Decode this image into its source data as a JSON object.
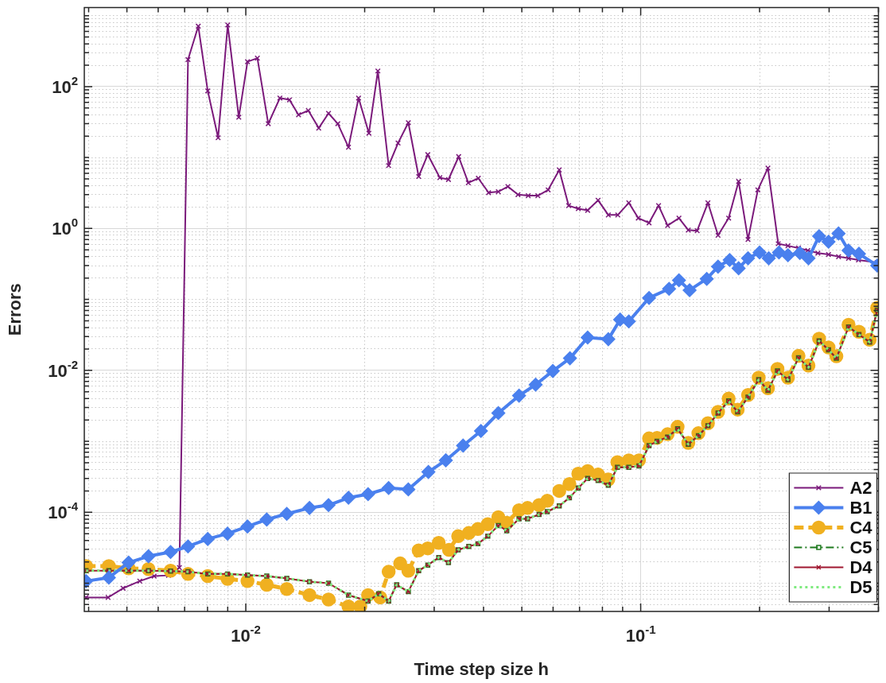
{
  "chart_data": {
    "type": "line",
    "xlabel": "Time step size h",
    "ylabel": "Errors",
    "log": "xy",
    "grid": true,
    "legend": "bottom right",
    "xlim": [
      0.0039,
      0.4
    ],
    "ylim": [
      4e-06,
      1300
    ],
    "xticks": [
      {
        "value": 0.004,
        "label": null
      },
      {
        "value": 0.005,
        "label": null
      },
      {
        "value": 0.006,
        "label": null
      },
      {
        "value": 0.007,
        "label": null
      },
      {
        "value": 0.008,
        "label": null
      },
      {
        "value": 0.009,
        "label": null
      },
      {
        "value": 0.01,
        "label": "10$^{-2}$"
      },
      {
        "value": 0.02,
        "label": null
      },
      {
        "value": 0.03,
        "label": null
      },
      {
        "value": 0.04,
        "label": null
      },
      {
        "value": 0.05,
        "label": null
      },
      {
        "value": 0.06,
        "label": null
      },
      {
        "value": 0.07,
        "label": null
      },
      {
        "value": 0.08,
        "label": null
      },
      {
        "value": 0.09,
        "label": null
      },
      {
        "value": 0.1,
        "label": "10$^{-1}$"
      },
      {
        "value": 0.2,
        "label": null
      },
      {
        "value": 0.3,
        "label": null
      },
      {
        "value": 0.4,
        "label": null
      }
    ],
    "yticks": [
      {
        "value": 5e-06,
        "label": null
      },
      {
        "value": 6e-06,
        "label": null
      },
      {
        "value": 7e-06,
        "label": null
      },
      {
        "value": 8e-06,
        "label": null
      },
      {
        "value": 9e-06,
        "label": null
      },
      {
        "value": 1e-05,
        "label": null
      },
      {
        "value": 2e-05,
        "label": null
      },
      {
        "value": 3e-05,
        "label": null
      },
      {
        "value": 4e-05,
        "label": null
      },
      {
        "value": 5e-05,
        "label": null
      },
      {
        "value": 6e-05,
        "label": null
      },
      {
        "value": 7e-05,
        "label": null
      },
      {
        "value": 8e-05,
        "label": null
      },
      {
        "value": 9e-05,
        "label": null
      },
      {
        "value": 0.0001,
        "label": "10$^{-4}$"
      },
      {
        "value": 0.0002,
        "label": null
      },
      {
        "value": 0.0003,
        "label": null
      },
      {
        "value": 0.0004,
        "label": null
      },
      {
        "value": 0.0005,
        "label": null
      },
      {
        "value": 0.0006,
        "label": null
      },
      {
        "value": 0.0007,
        "label": null
      },
      {
        "value": 0.0008,
        "label": null
      },
      {
        "value": 0.0009,
        "label": null
      },
      {
        "value": 0.001,
        "label": null
      },
      {
        "value": 0.002,
        "label": null
      },
      {
        "value": 0.003,
        "label": null
      },
      {
        "value": 0.004,
        "label": null
      },
      {
        "value": 0.005,
        "label": null
      },
      {
        "value": 0.006,
        "label": null
      },
      {
        "value": 0.007,
        "label": null
      },
      {
        "value": 0.008,
        "label": null
      },
      {
        "value": 0.009,
        "label": null
      },
      {
        "value": 0.01,
        "label": "10$^{-2}$"
      },
      {
        "value": 0.02,
        "label": null
      },
      {
        "value": 0.03,
        "label": null
      },
      {
        "value": 0.04,
        "label": null
      },
      {
        "value": 0.05,
        "label": null
      },
      {
        "value": 0.06,
        "label": null
      },
      {
        "value": 0.07,
        "label": null
      },
      {
        "value": 0.08,
        "label": null
      },
      {
        "value": 0.09,
        "label": null
      },
      {
        "value": 0.1,
        "label": null
      },
      {
        "value": 0.2,
        "label": null
      },
      {
        "value": 0.3,
        "label": null
      },
      {
        "value": 0.4,
        "label": null
      },
      {
        "value": 0.5,
        "label": null
      },
      {
        "value": 0.6,
        "label": null
      },
      {
        "value": 0.7,
        "label": null
      },
      {
        "value": 0.8,
        "label": null
      },
      {
        "value": 0.9,
        "label": null
      },
      {
        "value": 1,
        "label": "10$^{0}$"
      },
      {
        "value": 2,
        "label": null
      },
      {
        "value": 3,
        "label": null
      },
      {
        "value": 4,
        "label": null
      },
      {
        "value": 5,
        "label": null
      },
      {
        "value": 6,
        "label": null
      },
      {
        "value": 7,
        "label": null
      },
      {
        "value": 8,
        "label": null
      },
      {
        "value": 9,
        "label": null
      },
      {
        "value": 10,
        "label": null
      },
      {
        "value": 20,
        "label": null
      },
      {
        "value": 30,
        "label": null
      },
      {
        "value": 40,
        "label": null
      },
      {
        "value": 50,
        "label": null
      },
      {
        "value": 60,
        "label": null
      },
      {
        "value": 70,
        "label": null
      },
      {
        "value": 80,
        "label": null
      },
      {
        "value": 90,
        "label": null
      },
      {
        "value": 100,
        "label": "10$^{2}$"
      },
      {
        "value": 200,
        "label": null
      },
      {
        "value": 300,
        "label": null
      },
      {
        "value": 400,
        "label": null
      },
      {
        "value": 500,
        "label": null
      },
      {
        "value": 600,
        "label": null
      },
      {
        "value": 700,
        "label": null
      },
      {
        "value": 800,
        "label": null
      },
      {
        "value": 900,
        "label": null
      },
      {
        "value": 1000,
        "label": null
      }
    ],
    "series": [
      {
        "name": "A2",
        "color": "#7b1a7b",
        "marker": "cross",
        "line_style": "solid",
        "x": [
          0.00394,
          0.00448,
          0.00489,
          0.00539,
          0.00586,
          0.00637,
          0.00679,
          0.00714,
          0.00758,
          0.00801,
          0.00851,
          0.009,
          0.0096,
          0.0101,
          0.0107,
          0.0114,
          0.0122,
          0.0129,
          0.0136,
          0.0144,
          0.0153,
          0.0162,
          0.0171,
          0.0182,
          0.0193,
          0.0205,
          0.0216,
          0.023,
          0.0243,
          0.0258,
          0.0274,
          0.0289,
          0.031,
          0.0326,
          0.0346,
          0.0366,
          0.0388,
          0.0412,
          0.0436,
          0.0461,
          0.0489,
          0.0519,
          0.0549,
          0.0583,
          0.0622,
          0.0657,
          0.0695,
          0.0734,
          0.078,
          0.0828,
          0.0875,
          0.0933,
          0.0986,
          0.105,
          0.111,
          0.117,
          0.125,
          0.132,
          0.139,
          0.148,
          0.157,
          0.167,
          0.177,
          0.187,
          0.198,
          0.21,
          0.223,
          0.236,
          0.251,
          0.265,
          0.281,
          0.299,
          0.317,
          0.336,
          0.356,
          0.397
        ],
        "values": [
          6.3e-06,
          6.3e-06,
          8.5e-06,
          1.07e-05,
          1.26e-05,
          1.29e-05,
          1.66e-05,
          240,
          710,
          87,
          19,
          740,
          37,
          224,
          252,
          30,
          69,
          65,
          40,
          46,
          26,
          42,
          30,
          14,
          69,
          22,
          166,
          7.7,
          16,
          31,
          5.4,
          11,
          5.2,
          4.9,
          10.3,
          4.4,
          5.1,
          3.2,
          3.3,
          3.9,
          3.0,
          2.9,
          2.9,
          3.5,
          6.7,
          2.1,
          1.9,
          1.8,
          2.5,
          1.55,
          1.55,
          2.3,
          1.4,
          1.2,
          2.1,
          1.1,
          1.4,
          0.95,
          0.93,
          2.3,
          0.8,
          1.4,
          4.6,
          0.7,
          3.5,
          7.1,
          0.61,
          0.57,
          0.53,
          0.49,
          0.45,
          0.43,
          0.4,
          0.38,
          0.36,
          0.33
        ]
      },
      {
        "name": "B1",
        "color": "#4a80ee",
        "marker": "diamond",
        "line_style": "solid",
        "x": [
          0.00394,
          0.0045,
          0.00505,
          0.00567,
          0.00645,
          0.00714,
          0.00801,
          0.00899,
          0.0101,
          0.0113,
          0.0127,
          0.0145,
          0.0162,
          0.0182,
          0.0204,
          0.023,
          0.0258,
          0.029,
          0.0321,
          0.0355,
          0.0394,
          0.0436,
          0.0492,
          0.0542,
          0.0599,
          0.0662,
          0.0734,
          0.0828,
          0.0887,
          0.0933,
          0.105,
          0.118,
          0.125,
          0.133,
          0.147,
          0.157,
          0.168,
          0.177,
          0.187,
          0.2,
          0.211,
          0.224,
          0.236,
          0.253,
          0.266,
          0.283,
          0.299,
          0.317,
          0.336,
          0.357,
          0.397
        ],
        "values": [
          1.07e-05,
          1.2e-05,
          1.95e-05,
          2.4e-05,
          2.75e-05,
          3.3e-05,
          4.2e-05,
          5e-05,
          6.3e-05,
          7.9e-05,
          9.5e-05,
          0.000115,
          0.000126,
          0.00016,
          0.00018,
          0.00022,
          0.00021,
          0.00037,
          0.00054,
          0.00087,
          0.0014,
          0.0025,
          0.0044,
          0.0063,
          0.0098,
          0.0148,
          0.029,
          0.0275,
          0.052,
          0.049,
          0.105,
          0.141,
          0.186,
          0.135,
          0.195,
          0.29,
          0.36,
          0.275,
          0.38,
          0.46,
          0.38,
          0.46,
          0.42,
          0.45,
          0.38,
          0.78,
          0.65,
          0.85,
          0.49,
          0.44,
          0.3
        ]
      },
      {
        "name": "C4",
        "color": "#f0b020",
        "marker": "circle",
        "line_style": "dashed",
        "x": [
          0.00394,
          0.0045,
          0.00505,
          0.00567,
          0.00645,
          0.00714,
          0.00801,
          0.00899,
          0.0101,
          0.0113,
          0.0127,
          0.0145,
          0.0162,
          0.0182,
          0.0195,
          0.0204,
          0.0219,
          0.023,
          0.0246,
          0.0258,
          0.0274,
          0.0289,
          0.0308,
          0.0327,
          0.0345,
          0.0367,
          0.0387,
          0.041,
          0.0436,
          0.0458,
          0.0492,
          0.0517,
          0.0553,
          0.058,
          0.0622,
          0.066,
          0.0695,
          0.0734,
          0.078,
          0.0828,
          0.0873,
          0.0933,
          0.099,
          0.105,
          0.11,
          0.117,
          0.124,
          0.132,
          0.14,
          0.148,
          0.157,
          0.167,
          0.176,
          0.187,
          0.199,
          0.21,
          0.222,
          0.236,
          0.251,
          0.266,
          0.283,
          0.299,
          0.313,
          0.336,
          0.357,
          0.38,
          0.397
        ],
        "values": [
          1.74e-05,
          1.74e-05,
          1.62e-05,
          1.58e-05,
          1.5e-05,
          1.35e-05,
          1.26e-05,
          1.15e-05,
          1.07e-05,
          9.5e-06,
          8.3e-06,
          6.8e-06,
          5.9e-06,
          4.7e-06,
          4.7e-06,
          6.8e-06,
          6.3e-06,
          1.45e-05,
          1.9e-05,
          1.5e-05,
          2.9e-05,
          3.1e-05,
          3.7e-05,
          2.95e-05,
          4.6e-05,
          5.1e-05,
          5.8e-05,
          6.8e-05,
          8.5e-05,
          7.1e-05,
          0.000107,
          0.000115,
          0.000126,
          0.000145,
          0.0002,
          0.00025,
          0.00035,
          0.00038,
          0.00034,
          0.00029,
          0.00051,
          0.00054,
          0.00054,
          0.0011,
          0.00112,
          0.00126,
          0.0016,
          0.00095,
          0.0013,
          0.0018,
          0.0026,
          0.004,
          0.0028,
          0.0045,
          0.0079,
          0.0056,
          0.0105,
          0.0079,
          0.016,
          0.0117,
          0.028,
          0.021,
          0.0158,
          0.044,
          0.035,
          0.027,
          0.076
        ]
      },
      {
        "name": "C5",
        "color": "#1e7a1e",
        "marker": "square",
        "line_style": "dashdot",
        "x": [
          0.00394,
          0.0045,
          0.00505,
          0.00567,
          0.00645,
          0.00714,
          0.00801,
          0.00899,
          0.0101,
          0.0113,
          0.0127,
          0.0145,
          0.0162,
          0.0182,
          0.0204,
          0.0217,
          0.023,
          0.0241,
          0.0258,
          0.0274,
          0.0289,
          0.0308,
          0.0326,
          0.0345,
          0.0367,
          0.0387,
          0.041,
          0.0436,
          0.0458,
          0.0492,
          0.0517,
          0.0553,
          0.058,
          0.0622,
          0.066,
          0.0695,
          0.0734,
          0.078,
          0.0828,
          0.0873,
          0.0933,
          0.099,
          0.105,
          0.11,
          0.117,
          0.124,
          0.132,
          0.14,
          0.148,
          0.157,
          0.167,
          0.176,
          0.187,
          0.199,
          0.21,
          0.222,
          0.236,
          0.251,
          0.266,
          0.283,
          0.299,
          0.313,
          0.336,
          0.357,
          0.38,
          0.397
        ],
        "values": [
          1.5e-05,
          1.5e-05,
          1.5e-05,
          1.5e-05,
          1.48e-05,
          1.45e-05,
          1.35e-05,
          1.35e-05,
          1.3e-05,
          1.26e-05,
          1.17e-05,
          1.05e-05,
          1e-05,
          6.8e-06,
          5.6e-06,
          7.1e-06,
          5.6e-06,
          9.5e-06,
          7.6e-06,
          1.5e-05,
          1.8e-05,
          2.3e-05,
          1.95e-05,
          2.95e-05,
          3.3e-05,
          3.6e-05,
          4.6e-05,
          6.5e-05,
          5.5e-05,
          8.1e-05,
          8.1e-05,
          9.3e-05,
          0.000102,
          0.000123,
          0.00016,
          0.00022,
          0.0003,
          0.00028,
          0.00024,
          0.00043,
          0.00043,
          0.00045,
          0.00087,
          0.001,
          0.00115,
          0.0015,
          0.00091,
          0.0012,
          0.00166,
          0.0025,
          0.0037,
          0.0026,
          0.0042,
          0.0074,
          0.0052,
          0.0098,
          0.0074,
          0.015,
          0.011,
          0.026,
          0.0195,
          0.0148,
          0.041,
          0.032,
          0.025,
          0.071
        ]
      },
      {
        "name": "D4",
        "color": "#a01830",
        "marker": "cross",
        "line_style": "solid",
        "x": [
          0.00394,
          0.0045,
          0.00505,
          0.00567,
          0.00645,
          0.00714,
          0.00801,
          0.00899,
          0.0101,
          0.0113,
          0.0127,
          0.0145,
          0.0162,
          0.0182,
          0.0204,
          0.0217,
          0.023,
          0.0241,
          0.0258,
          0.0274,
          0.0289,
          0.0308,
          0.0326,
          0.0345,
          0.0367,
          0.0387,
          0.041,
          0.0436,
          0.0458,
          0.0492,
          0.0517,
          0.0553,
          0.058,
          0.0622,
          0.066,
          0.0695,
          0.0734,
          0.078,
          0.0828,
          0.0873,
          0.0933,
          0.099,
          0.105,
          0.11,
          0.117,
          0.124,
          0.132,
          0.14,
          0.148,
          0.157,
          0.167,
          0.176,
          0.187,
          0.199,
          0.21,
          0.222,
          0.236,
          0.251,
          0.266,
          0.283,
          0.299,
          0.313,
          0.336,
          0.357,
          0.38,
          0.397
        ],
        "values": [
          1.5e-05,
          1.5e-05,
          1.5e-05,
          1.5e-05,
          1.48e-05,
          1.45e-05,
          1.35e-05,
          1.35e-05,
          1.3e-05,
          1.26e-05,
          1.17e-05,
          1.05e-05,
          1e-05,
          6.8e-06,
          5.6e-06,
          7.1e-06,
          5.6e-06,
          9.5e-06,
          7.6e-06,
          1.5e-05,
          1.8e-05,
          2.3e-05,
          1.95e-05,
          2.95e-05,
          3.3e-05,
          3.6e-05,
          4.6e-05,
          6.5e-05,
          5.5e-05,
          8.1e-05,
          8.1e-05,
          9.3e-05,
          0.000102,
          0.000123,
          0.00016,
          0.00022,
          0.0003,
          0.00028,
          0.00024,
          0.00043,
          0.00043,
          0.00045,
          0.00087,
          0.001,
          0.00115,
          0.0015,
          0.00091,
          0.0012,
          0.00166,
          0.0025,
          0.0037,
          0.0026,
          0.0042,
          0.0074,
          0.0052,
          0.0098,
          0.0074,
          0.015,
          0.011,
          0.026,
          0.0195,
          0.0148,
          0.041,
          0.032,
          0.025,
          0.071
        ]
      },
      {
        "name": "D5",
        "color": "#7eea7e",
        "marker": "none",
        "line_style": "dotted",
        "x": [
          0.00394,
          0.0045,
          0.00505,
          0.00567,
          0.00645,
          0.00714,
          0.00801,
          0.00899,
          0.0101,
          0.0113,
          0.0127,
          0.0145,
          0.0162,
          0.0182,
          0.0204,
          0.0217,
          0.023,
          0.0241,
          0.0258,
          0.0274,
          0.0289,
          0.0308,
          0.0326,
          0.0345,
          0.0367,
          0.0387,
          0.041,
          0.0436,
          0.0458,
          0.0492,
          0.0517,
          0.0553,
          0.058,
          0.0622,
          0.066,
          0.0695,
          0.0734,
          0.078,
          0.0828,
          0.0873,
          0.0933,
          0.099,
          0.105,
          0.11,
          0.117,
          0.124,
          0.132,
          0.14,
          0.148,
          0.157,
          0.167,
          0.176,
          0.187,
          0.199,
          0.21,
          0.222,
          0.236,
          0.251,
          0.266,
          0.283,
          0.299,
          0.313,
          0.336,
          0.357,
          0.38,
          0.397
        ],
        "values": [
          1.5e-05,
          1.5e-05,
          1.5e-05,
          1.5e-05,
          1.48e-05,
          1.45e-05,
          1.35e-05,
          1.35e-05,
          1.3e-05,
          1.26e-05,
          1.17e-05,
          1.05e-05,
          1e-05,
          6.8e-06,
          5.6e-06,
          7.1e-06,
          5.6e-06,
          9.5e-06,
          7.6e-06,
          1.5e-05,
          1.8e-05,
          2.3e-05,
          1.95e-05,
          2.95e-05,
          3.3e-05,
          3.6e-05,
          4.6e-05,
          6.5e-05,
          5.5e-05,
          8.1e-05,
          8.1e-05,
          9.3e-05,
          0.000102,
          0.000123,
          0.00016,
          0.00022,
          0.0003,
          0.00028,
          0.00024,
          0.00043,
          0.00043,
          0.00045,
          0.00087,
          0.001,
          0.00115,
          0.0015,
          0.00091,
          0.0012,
          0.00166,
          0.0025,
          0.0037,
          0.0026,
          0.0042,
          0.0074,
          0.0052,
          0.0098,
          0.0074,
          0.015,
          0.011,
          0.026,
          0.0195,
          0.0148,
          0.041,
          0.032,
          0.025,
          0.071
        ]
      }
    ]
  }
}
